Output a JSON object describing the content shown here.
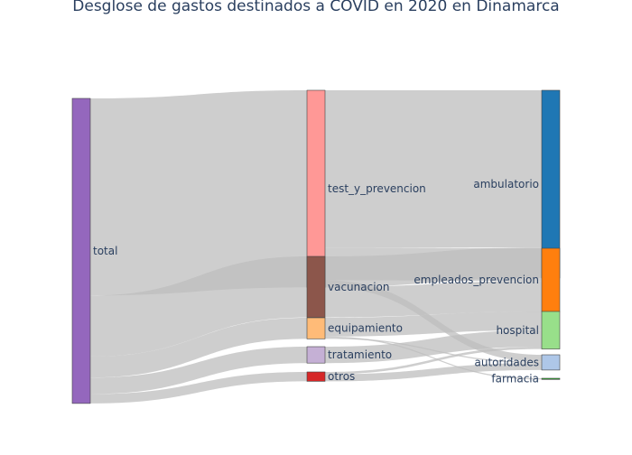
{
  "title": "Desglose de gastos destinados a COVID en 2020 en Dinamarca",
  "chart_data": {
    "type": "sankey",
    "title": "Desglose de gastos destinados a COVID en 2020 en Dinamarca",
    "nodes": [
      {
        "id": "total",
        "label": "total",
        "color": "#9467bd",
        "column": 0
      },
      {
        "id": "test_y_prevencion",
        "label": "test_y_prevencion",
        "color": "#ff9896",
        "column": 1
      },
      {
        "id": "vacunacion",
        "label": "vacunacion",
        "color": "#8c564b",
        "column": 1
      },
      {
        "id": "equipamiento",
        "label": "equipamiento",
        "color": "#ffbb78",
        "column": 1
      },
      {
        "id": "tratamiento",
        "label": "tratamiento",
        "color": "#c5b0d5",
        "column": 1
      },
      {
        "id": "otros",
        "label": "otros",
        "color": "#d62728",
        "column": 1
      },
      {
        "id": "ambulatorio",
        "label": "ambulatorio",
        "color": "#1f77b4",
        "column": 2
      },
      {
        "id": "empleados_prevencion",
        "label": "empleados_prevencion",
        "color": "#ff7f0e",
        "column": 2
      },
      {
        "id": "hospital",
        "label": "hospital",
        "color": "#98df8a",
        "column": 2
      },
      {
        "id": "autoridades",
        "label": "autoridades",
        "color": "#aec7e8",
        "column": 2
      },
      {
        "id": "farmacia",
        "label": "farmacia",
        "color": "#2ca02c",
        "column": 2
      }
    ],
    "links": [
      {
        "source": "total",
        "target": "test_y_prevencion",
        "value": 84
      },
      {
        "source": "total",
        "target": "vacunacion",
        "value": 26
      },
      {
        "source": "total",
        "target": "equipamiento",
        "value": 9
      },
      {
        "source": "total",
        "target": "tratamiento",
        "value": 7
      },
      {
        "source": "total",
        "target": "otros",
        "value": 4
      },
      {
        "source": "test_y_prevencion",
        "target": "ambulatorio",
        "value": 67
      },
      {
        "source": "test_y_prevencion",
        "target": "empleados_prevencion",
        "value": 14
      },
      {
        "source": "test_y_prevencion",
        "target": "autoridades",
        "value": 3
      },
      {
        "source": "vacunacion",
        "target": "ambulatorio",
        "value": 13
      },
      {
        "source": "vacunacion",
        "target": "empleados_prevencion",
        "value": 13
      },
      {
        "source": "equipamiento",
        "target": "hospital",
        "value": 8
      },
      {
        "source": "equipamiento",
        "target": "farmacia",
        "value": 0.5
      },
      {
        "source": "equipamiento",
        "target": "autoridades",
        "value": 0.5
      },
      {
        "source": "tratamiento",
        "target": "hospital",
        "value": 7
      },
      {
        "source": "otros",
        "target": "hospital",
        "value": 1
      },
      {
        "source": "otros",
        "target": "autoridades",
        "value": 3
      }
    ],
    "link_color": "#bdbdbd"
  }
}
